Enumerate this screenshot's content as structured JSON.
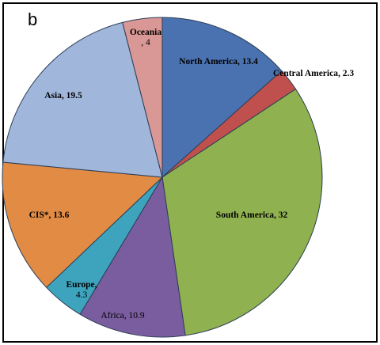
{
  "panel_letter": "b",
  "chart_data": {
    "type": "pie",
    "title": "",
    "slices": [
      {
        "label": "North America",
        "value": 13.4,
        "color": "#4a72b0"
      },
      {
        "label": "Central America",
        "value": 2.3,
        "color": "#c0504d"
      },
      {
        "label": "South America",
        "value": 32,
        "color": "#8fb14f"
      },
      {
        "label": "Africa",
        "value": 10.9,
        "color": "#7a5d9e"
      },
      {
        "label": "Europe",
        "value": 4.3,
        "color": "#3ea3bd"
      },
      {
        "label": "CIS*",
        "value": 13.6,
        "color": "#e18b45"
      },
      {
        "label": "Asia",
        "value": 19.5,
        "color": "#a1b6db"
      },
      {
        "label": "Oceania",
        "value": 4,
        "color": "#d99795"
      }
    ],
    "data_labels": [
      [
        "North America, 13.4"
      ],
      [
        "Central America, 2.3"
      ],
      [
        "South America, 32"
      ],
      [
        "Africa, 10.9"
      ],
      [
        "Europe,",
        "4.3"
      ],
      [
        "CIS*, 13.6"
      ],
      [
        "Asia, 19.5"
      ],
      [
        "Oceania",
        ", 4"
      ]
    ],
    "legend": "none"
  }
}
